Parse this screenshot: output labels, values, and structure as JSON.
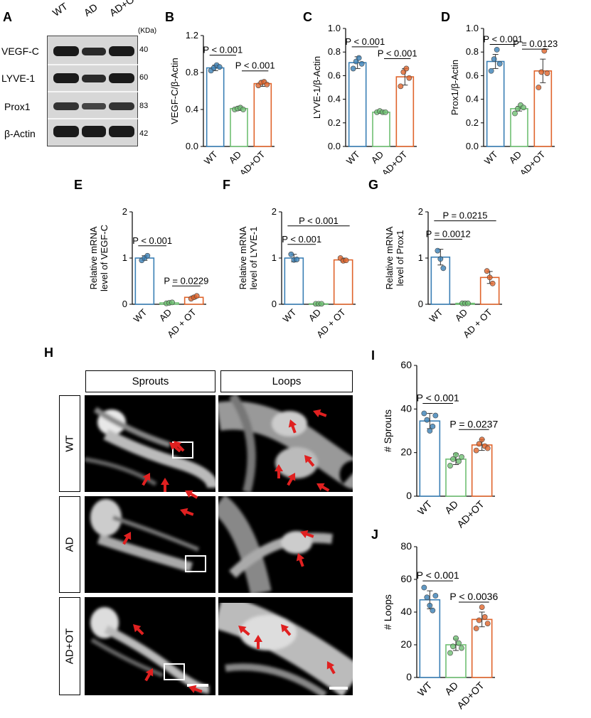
{
  "colors": {
    "wt": "#3a7fb5",
    "ad": "#6fbf73",
    "ot": "#e0642b",
    "arrow": "#e02020"
  },
  "panel_letters": [
    "A",
    "B",
    "C",
    "D",
    "E",
    "F",
    "G",
    "H",
    "I",
    "J"
  ],
  "blot": {
    "lanes": [
      "WT",
      "AD",
      "AD+OT"
    ],
    "unit": "(KDa)",
    "bands": [
      {
        "name": "VEGF-C",
        "kda": "40"
      },
      {
        "name": "LYVE-1",
        "kda": "60"
      },
      {
        "name": "Prox1",
        "kda": "83"
      },
      {
        "name": "β-Actin",
        "kda": "42"
      }
    ]
  },
  "imaging": {
    "columns": [
      "Sprouts",
      "Loops"
    ],
    "rows": [
      "WT",
      "AD",
      "AD+OT"
    ]
  },
  "chart_data": [
    {
      "id": "B",
      "type": "bar",
      "categories": [
        "WT",
        "AD",
        "AD+OT"
      ],
      "values": [
        0.85,
        0.41,
        0.68
      ],
      "errors": [
        0.03,
        0.02,
        0.03
      ],
      "points": [
        [
          0.82,
          0.85,
          0.88,
          0.86
        ],
        [
          0.4,
          0.41,
          0.42,
          0.4
        ],
        [
          0.66,
          0.69,
          0.7,
          0.67
        ]
      ],
      "ylabel": "VEGF-C/β-Actin",
      "ylim": [
        0,
        1.2
      ],
      "yticks": [
        "0.0",
        "0.4",
        "0.8",
        "1.2"
      ],
      "annotations": [
        {
          "from": 0,
          "to": 1,
          "text": "P < 0.001"
        },
        {
          "from": 1,
          "to": 2,
          "text": "P < 0.001"
        }
      ]
    },
    {
      "id": "C",
      "type": "bar",
      "categories": [
        "WT",
        "AD",
        "AD+OT"
      ],
      "values": [
        0.71,
        0.29,
        0.59
      ],
      "errors": [
        0.05,
        0.01,
        0.07
      ],
      "points": [
        [
          0.66,
          0.72,
          0.75,
          0.7
        ],
        [
          0.29,
          0.3,
          0.29,
          0.29
        ],
        [
          0.51,
          0.63,
          0.66,
          0.58
        ]
      ],
      "ylabel": "LYVE-1/β-Actin",
      "ylim": [
        0,
        1.0
      ],
      "yticks": [
        "0.0",
        "0.2",
        "0.4",
        "0.6",
        "0.8",
        "1.0"
      ],
      "annotations": [
        {
          "from": 0,
          "to": 1,
          "text": "P < 0.001"
        },
        {
          "from": 1,
          "to": 2,
          "text": "P < 0.001"
        }
      ]
    },
    {
      "id": "D",
      "type": "bar",
      "categories": [
        "WT",
        "AD",
        "AD+OT"
      ],
      "values": [
        0.72,
        0.32,
        0.64
      ],
      "errors": [
        0.06,
        0.02,
        0.1
      ],
      "points": [
        [
          0.64,
          0.74,
          0.82,
          0.7
        ],
        [
          0.28,
          0.32,
          0.35,
          0.33
        ],
        [
          0.5,
          0.63,
          0.81,
          0.62
        ]
      ],
      "ylabel": "Prox1/β-Actin",
      "ylim": [
        0,
        1.0
      ],
      "yticks": [
        "0.0",
        "0.2",
        "0.4",
        "0.6",
        "0.8",
        "1.0"
      ],
      "annotations": [
        {
          "from": 0,
          "to": 1,
          "text": "P < 0.001"
        },
        {
          "from": 1,
          "to": 2,
          "text": "P = 0.0123"
        }
      ]
    },
    {
      "id": "E",
      "type": "bar",
      "categories": [
        "WT",
        "AD",
        "AD + OT"
      ],
      "values": [
        1.0,
        0.03,
        0.15
      ],
      "errors": [
        0.05,
        0.02,
        0.03
      ],
      "points": [
        [
          0.95,
          1.0,
          1.05
        ],
        [
          0.02,
          0.03,
          0.04
        ],
        [
          0.12,
          0.15,
          0.18
        ]
      ],
      "ylabel": "Relative mRNA\nlevel of VEGF-C",
      "ylim": [
        0,
        2
      ],
      "yticks": [
        "0",
        "1",
        "2"
      ],
      "annotations": [
        {
          "from": 0,
          "to": 1,
          "text": "P < 0.001"
        },
        {
          "from": 1,
          "to": 2,
          "text": "P = 0.0229"
        }
      ]
    },
    {
      "id": "F",
      "type": "bar",
      "categories": [
        "WT",
        "AD",
        "AD + OT"
      ],
      "values": [
        1.0,
        0.01,
        0.96
      ],
      "errors": [
        0.08,
        0.01,
        0.04
      ],
      "points": [
        [
          1.08,
          0.96,
          0.97
        ],
        [
          0.01,
          0.01,
          0.01
        ],
        [
          1.0,
          0.94,
          0.95
        ]
      ],
      "ylabel": "Relative mRNA\nlevel of LYVE-1",
      "ylim": [
        0,
        2
      ],
      "yticks": [
        "0",
        "1",
        "2"
      ],
      "annotations": [
        {
          "from": 0,
          "to": 1,
          "text": "P < 0.001"
        },
        {
          "from": 0,
          "to": 2,
          "text": "P < 0.001"
        }
      ]
    },
    {
      "id": "G",
      "type": "bar",
      "categories": [
        "WT",
        "AD",
        "AD + OT"
      ],
      "values": [
        1.02,
        0.02,
        0.58
      ],
      "errors": [
        0.17,
        0.02,
        0.13
      ],
      "points": [
        [
          1.16,
          0.98,
          0.78
        ],
        [
          0.02,
          0.02,
          0.02
        ],
        [
          0.72,
          0.58,
          0.45
        ]
      ],
      "ylabel": "Relative mRNA\nlevel of Prox1",
      "ylim": [
        0,
        2
      ],
      "yticks": [
        "0",
        "1",
        "2"
      ],
      "annotations": [
        {
          "from": 0,
          "to": 1,
          "text": "P = 0.0012"
        },
        {
          "from": 0,
          "to": 2,
          "text": "P = 0.0215"
        }
      ]
    },
    {
      "id": "I",
      "type": "bar",
      "categories": [
        "WT",
        "AD",
        "AD+OT"
      ],
      "values": [
        34.5,
        17,
        23.5
      ],
      "errors": [
        3.5,
        2.5,
        2.5
      ],
      "points": [
        [
          38,
          35,
          30,
          32,
          37
        ],
        [
          14,
          17,
          19,
          16,
          18
        ],
        [
          21,
          24,
          26,
          23,
          22
        ]
      ],
      "ylabel": "# Sprouts",
      "ylim": [
        0,
        60
      ],
      "yticks": [
        "0",
        "20",
        "40",
        "60"
      ],
      "annotations": [
        {
          "from": 0,
          "to": 1,
          "text": "P < 0.001"
        },
        {
          "from": 1,
          "to": 2,
          "text": "P = 0.0237"
        }
      ]
    },
    {
      "id": "J",
      "type": "bar",
      "categories": [
        "WT",
        "AD",
        "AD+OT"
      ],
      "values": [
        47.5,
        20,
        35.5
      ],
      "errors": [
        5.5,
        3.5,
        4.5
      ],
      "points": [
        [
          55,
          49,
          44,
          41,
          50
        ],
        [
          15,
          19,
          24,
          21,
          18
        ],
        [
          30,
          35,
          43,
          37,
          33
        ]
      ],
      "ylabel": "# Loops",
      "ylim": [
        0,
        80
      ],
      "yticks": [
        "0",
        "20",
        "40",
        "60",
        "80"
      ],
      "annotations": [
        {
          "from": 0,
          "to": 1,
          "text": "P < 0.001"
        },
        {
          "from": 1,
          "to": 2,
          "text": "P < 0.0036"
        }
      ]
    }
  ]
}
